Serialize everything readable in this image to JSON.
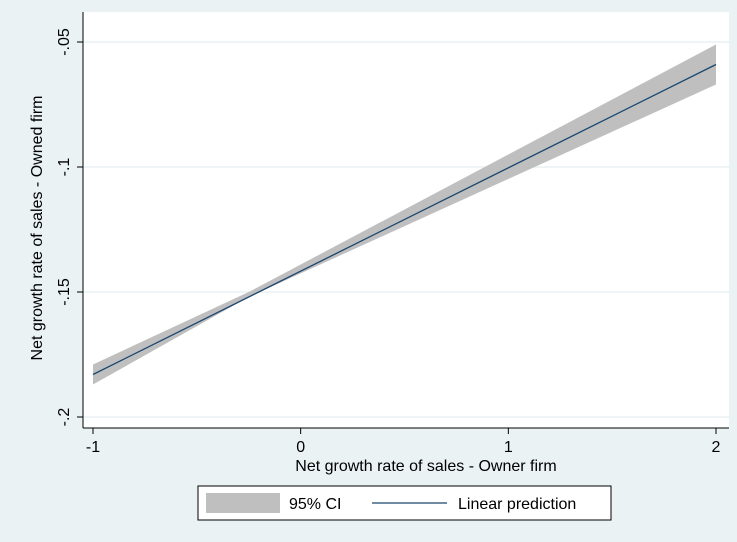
{
  "chart_data": {
    "type": "line",
    "xlabel": "Net growth rate of sales - Owner firm",
    "ylabel": "Net growth rate of sales - Owned firm",
    "xlim": [
      -1,
      2
    ],
    "ylim": [
      -0.2,
      -0.05
    ],
    "x_ticks": [
      -1,
      0,
      1,
      2
    ],
    "x_tick_labels": [
      "-1",
      "0",
      "1",
      "2"
    ],
    "y_ticks": [
      -0.2,
      -0.15,
      -0.1,
      -0.05
    ],
    "y_tick_labels": [
      "-.2",
      "-.15",
      "-.1",
      "-.05"
    ],
    "grid": "horizontal",
    "legend_position": "bottom",
    "series": [
      {
        "name": "Linear prediction",
        "kind": "line",
        "color": "#1a476f",
        "x": [
          -1,
          2
        ],
        "y": [
          -0.183,
          -0.059
        ]
      },
      {
        "name": "95% CI",
        "kind": "band",
        "color": "#bfbfbf",
        "x": [
          -1,
          -0.25,
          2
        ],
        "lower": [
          -0.187,
          -0.152,
          -0.067
        ],
        "upper": [
          -0.179,
          -0.15,
          -0.051
        ]
      }
    ],
    "legend": {
      "items": [
        {
          "label": "95% CI",
          "symbol": "area"
        },
        {
          "label": "Linear prediction",
          "symbol": "line"
        }
      ]
    }
  },
  "colors": {
    "background": "#eaf2f3",
    "plot_background": "#ffffff",
    "gridline": "#eaf2f3",
    "band": "#bfbfbf",
    "line": "#1a476f"
  }
}
